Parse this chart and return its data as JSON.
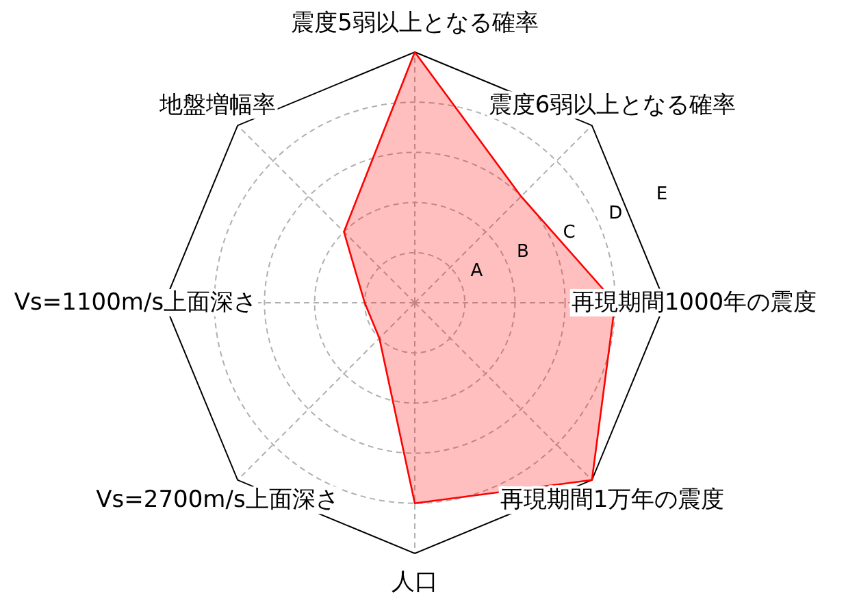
{
  "chart_data": {
    "type": "radar",
    "categories": [
      "震度5弱以上となる確率",
      "震度6弱以上となる確率",
      "再現期間1000年の震度",
      "再現期間1万年の震度",
      "人口",
      "Vs=2700m/s上面深さ",
      "Vs=1100m/s上面深さ",
      "地盤増幅率"
    ],
    "series": [
      {
        "color": "#ff0000",
        "values": [
          5,
          3,
          4,
          5,
          4,
          1,
          1,
          2
        ]
      }
    ],
    "ylim": [
      0,
      5
    ],
    "yticks": [
      {
        "value": 1,
        "label": "A"
      },
      {
        "value": 2,
        "label": "B"
      },
      {
        "value": 3,
        "label": "C"
      },
      {
        "value": 4,
        "label": "D"
      },
      {
        "value": 5,
        "label": "E"
      }
    ],
    "grid": true
  }
}
